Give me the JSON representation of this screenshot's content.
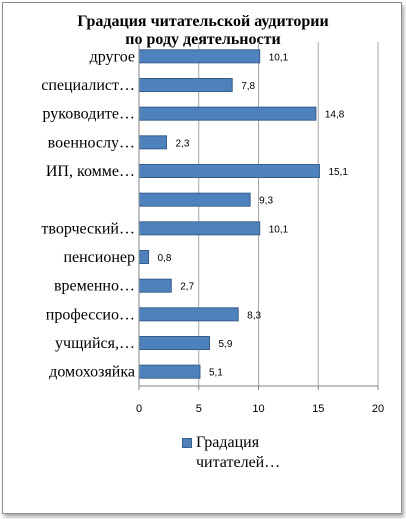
{
  "chart_data": {
    "type": "bar",
    "orientation": "horizontal",
    "title_lines": [
      "Градация читательской аудитории",
      "по роду деятельности"
    ],
    "categories": [
      "другое",
      "специалист…",
      "руководите…",
      "военнослу…",
      "ИП, комме…",
      "",
      "творческий…",
      "пенсионер",
      "временно…",
      "профессио…",
      "учщийся,…",
      "домохозяйка"
    ],
    "series": [
      {
        "name_lines": [
          "Градация",
          "читателей…"
        ],
        "values": [
          10.1,
          7.8,
          14.8,
          2.3,
          15.1,
          9.3,
          10.1,
          0.8,
          2.7,
          8.3,
          5.9,
          5.1
        ],
        "labels": [
          "10,1",
          "7,8",
          "14,8",
          "2,3",
          "15,1",
          "9,3",
          "10,1",
          "0,8",
          "2,7",
          "8,3",
          "5,9",
          "5,1"
        ]
      }
    ],
    "xlim": [
      0,
      20
    ],
    "xticks": [
      "0",
      "5",
      "10",
      "15",
      "20"
    ],
    "grid": true,
    "legend_position": "bottom",
    "colors": {
      "bar": "#4f81bd",
      "bar_border": "#385d8a",
      "grid": "#a6a6a6"
    }
  }
}
